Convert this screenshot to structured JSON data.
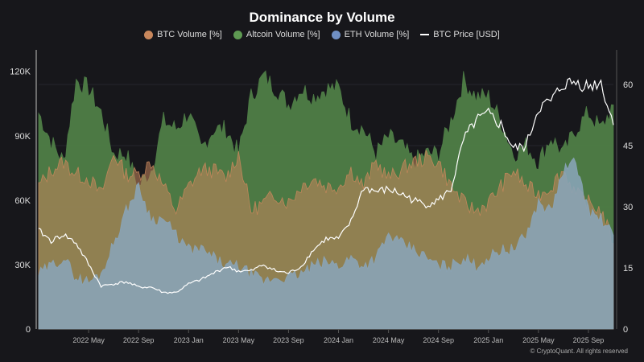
{
  "chart_data": {
    "type": "area",
    "title": "Dominance by Volume",
    "x": [
      "2022-01",
      "2022-02",
      "2022-03",
      "2022-04",
      "2022-05",
      "2022-06",
      "2022-07",
      "2022-08",
      "2022-09",
      "2022-10",
      "2022-11",
      "2022-12",
      "2023-01",
      "2023-02",
      "2023-03",
      "2023-04",
      "2023-05",
      "2023-06",
      "2023-07",
      "2023-08",
      "2023-09",
      "2023-10",
      "2023-11",
      "2023-12",
      "2024-01",
      "2024-02",
      "2024-03",
      "2024-04",
      "2024-05",
      "2024-06",
      "2024-07",
      "2024-08",
      "2024-09",
      "2024-10",
      "2024-11",
      "2024-12",
      "2025-01",
      "2025-02",
      "2025-03",
      "2025-04",
      "2025-05",
      "2025-06",
      "2025-07",
      "2025-08",
      "2025-09",
      "2025-10",
      "2025-11"
    ],
    "x_ticks": [
      "2022 May",
      "2022 Sep",
      "2023 Jan",
      "2023 May",
      "2023 Sep",
      "2024 Jan",
      "2024 May",
      "2024 Sep",
      "2025 Jan",
      "2025 May",
      "2025 Sep"
    ],
    "x_tick_dates": [
      "2022-05",
      "2022-09",
      "2023-01",
      "2023-05",
      "2023-09",
      "2024-01",
      "2024-05",
      "2024-09",
      "2025-01",
      "2025-05",
      "2025-09"
    ],
    "y_left": {
      "ticks": [
        "0",
        "30K",
        "60K",
        "90K",
        "120K"
      ],
      "tick_values": [
        0,
        30000,
        60000,
        90000,
        120000
      ],
      "range": [
        0,
        130000
      ]
    },
    "y_right": {
      "ticks": [
        "0",
        "15",
        "30",
        "45",
        "60"
      ],
      "tick_values": [
        0,
        15,
        30,
        45,
        60
      ],
      "range": [
        0,
        68.5
      ]
    },
    "grid": true,
    "legend_position": "top",
    "series": [
      {
        "name": "Altcoin Volume [%]",
        "axis": "right",
        "color": "#5e9a52",
        "values": [
          53,
          46,
          41,
          61,
          59,
          53,
          43,
          43,
          35,
          39,
          51,
          49,
          53,
          44,
          49,
          49,
          43,
          57,
          62,
          59,
          55,
          59,
          57,
          59,
          59,
          51,
          49,
          43,
          47,
          45,
          41,
          43,
          43,
          51,
          61,
          57,
          57,
          51,
          43,
          45,
          41,
          47,
          43,
          49,
          53,
          49,
          55
        ]
      },
      {
        "name": "BTC Volume [%]",
        "axis": "right",
        "color": "#c8875c",
        "values": [
          35,
          39,
          41,
          38,
          37,
          33,
          43,
          38,
          38,
          41,
          35,
          29,
          35,
          39,
          39,
          37,
          43,
          29,
          31,
          33,
          31,
          35,
          37,
          35,
          35,
          39,
          35,
          41,
          37,
          39,
          41,
          42,
          41,
          35,
          31,
          29,
          31,
          35,
          39,
          35,
          33,
          35,
          39,
          33,
          31,
          29,
          21
        ]
      },
      {
        "name": "ETH Volume [%]",
        "axis": "right",
        "color": "#6f8fc4",
        "values": [
          13.5,
          15.5,
          17.5,
          12.6,
          11.6,
          13.5,
          21,
          29,
          35,
          27,
          27,
          23,
          19.5,
          19.5,
          17.5,
          15.5,
          15.5,
          13.5,
          11.6,
          12.6,
          12.6,
          13.5,
          15.5,
          16.5,
          15.5,
          17.5,
          15.5,
          17.5,
          23,
          21,
          19.5,
          17.5,
          15.5,
          15.5,
          17.5,
          15.5,
          17.5,
          19.5,
          19.5,
          23,
          31,
          29,
          39,
          41,
          29,
          27,
          23
        ]
      },
      {
        "name": "BTC Price [USD]",
        "axis": "left",
        "color": "#ffffff",
        "values": [
          46000,
          41000,
          44000,
          40000,
          30000,
          20000,
          21000,
          22000,
          19500,
          19500,
          17000,
          17000,
          21000,
          23000,
          26000,
          29000,
          27000,
          27000,
          30000,
          27000,
          26000,
          29000,
          37000,
          42000,
          42000,
          50000,
          66000,
          64000,
          65000,
          63000,
          60000,
          58000,
          60000,
          65000,
          88000,
          97000,
          100000,
          95000,
          84000,
          85000,
          103000,
          106000,
          114000,
          115000,
          113000,
          115000,
          95000
        ]
      }
    ]
  },
  "footer": {
    "credit": "© CryptoQuant. All rights reserved"
  }
}
